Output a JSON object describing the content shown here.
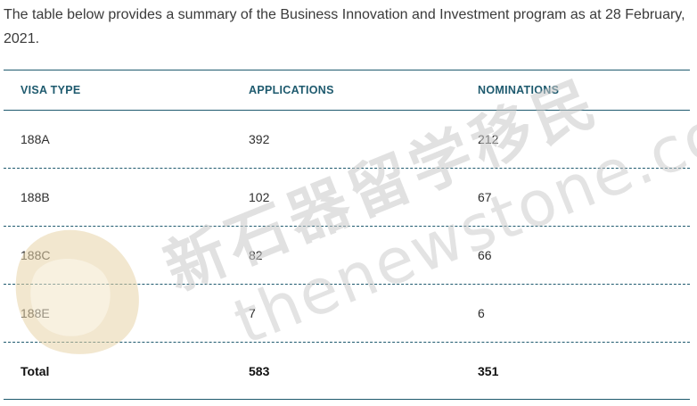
{
  "intro_text": "The table below provides a summary of the Business Innovation and Investment program as at 28 February, 2021.",
  "table": {
    "headers": [
      "VISA TYPE",
      "APPLICATIONS",
      "NOMINATIONS"
    ],
    "rows": [
      [
        "188A",
        "392",
        "212"
      ],
      [
        "188B",
        "102",
        "67"
      ],
      [
        "188C",
        "82",
        "66"
      ],
      [
        "188E",
        "7",
        "6"
      ]
    ],
    "total": [
      "Total",
      "583",
      "351"
    ]
  },
  "watermark": {
    "chinese": "新石器留学移民",
    "latin": "thenewstone.com",
    "color": "#c8c8c8"
  }
}
